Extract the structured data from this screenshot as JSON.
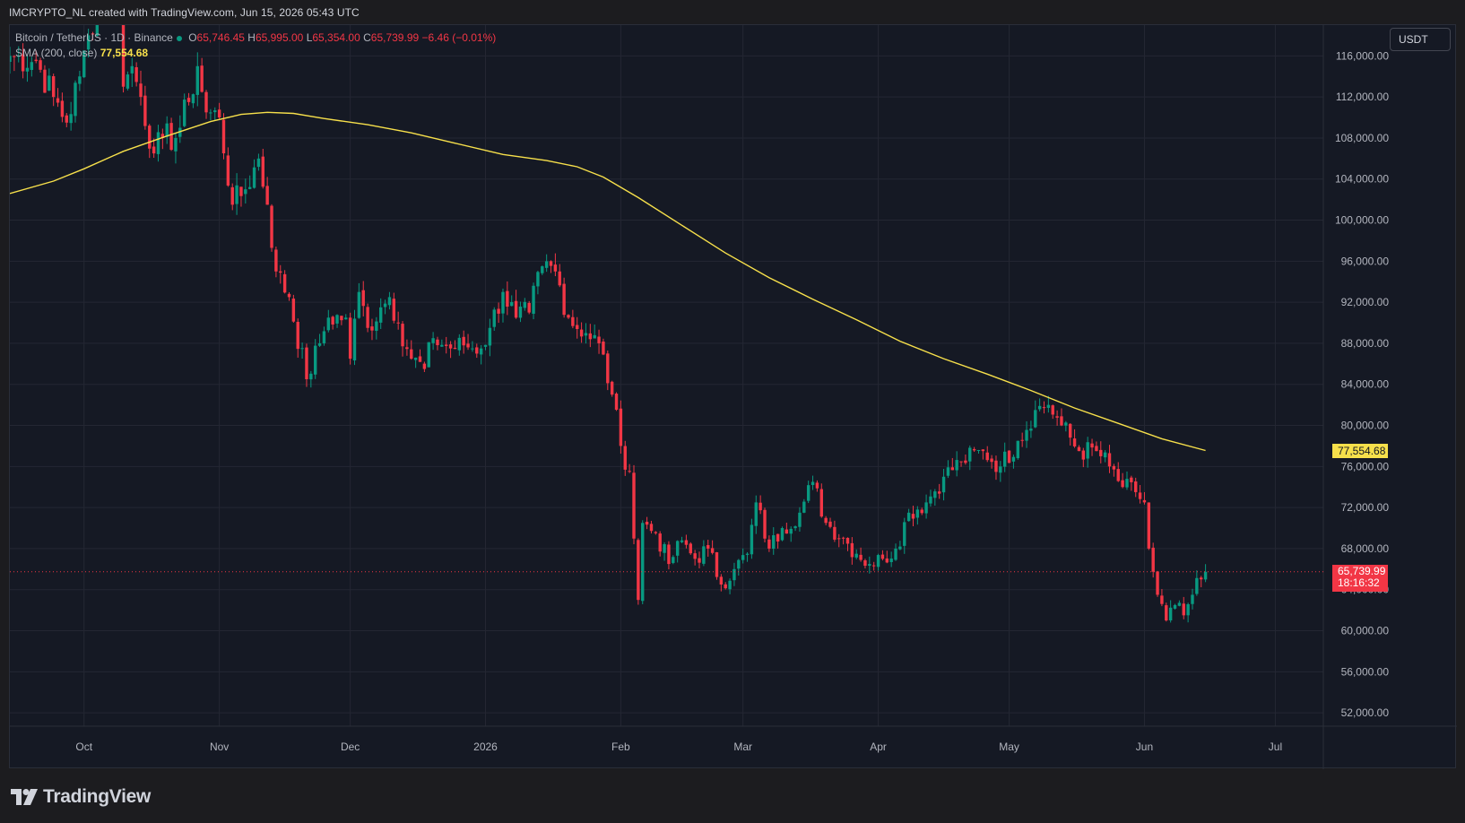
{
  "header": {
    "author_line": "IMCRYPTO_NL created with TradingView.com, Jun 15, 2026 05:43 UTC"
  },
  "legend": {
    "symbol": "Bitcoin / TetherUS · 1D · Binance",
    "open_label": "O",
    "open": "65,746.45",
    "high_label": "H",
    "high": "65,995.00",
    "low_label": "L",
    "low": "65,354.00",
    "close_label": "C",
    "close": "65,739.99",
    "change": "−6.46 (−0.01%)",
    "sma_label": "SMA (200, close)",
    "sma_value": "77,554.68"
  },
  "currency_button": "USDT",
  "price_tags": {
    "sma": "77,554.68",
    "last_price": "65,739.99",
    "countdown": "18:16:32"
  },
  "brand": {
    "name": "TradingView"
  },
  "colors": {
    "background": "#151924",
    "up": "#089981",
    "down": "#f23645",
    "sma": "#f7e04b",
    "grid": "#242733",
    "text": "#d1d4dc"
  },
  "chart_data": {
    "type": "candlestick",
    "symbol": "Bitcoin / TetherUS",
    "interval": "1D",
    "exchange": "Binance",
    "y_axis": {
      "ticks": [
        52000,
        56000,
        60000,
        64000,
        68000,
        72000,
        76000,
        80000,
        84000,
        88000,
        92000,
        96000,
        100000,
        104000,
        108000,
        112000,
        116000
      ],
      "tick_labels": [
        "52,000.00",
        "56,000.00",
        "60,000.00",
        "64,000.00",
        "68,000.00",
        "72,000.00",
        "76,000.00",
        "80,000.00",
        "84,000.00",
        "88,000.00",
        "92,000.00",
        "96,000.00",
        "100,000.00",
        "104,000.00",
        "108,000.00",
        "112,000.00",
        "116,000.00"
      ],
      "range": [
        50700,
        119000
      ],
      "side": "right"
    },
    "x_axis": {
      "tick_labels": [
        "Oct",
        "Nov",
        "Dec",
        "2026",
        "Feb",
        "Mar",
        "Apr",
        "May",
        "Jun",
        "Jul"
      ],
      "tick_dates": [
        "2025-10-01",
        "2025-11-01",
        "2025-12-01",
        "2026-01-01",
        "2026-02-01",
        "2026-03-01",
        "2026-04-01",
        "2026-05-01",
        "2026-06-01",
        "2026-07-01"
      ],
      "range": [
        "2025-09-14",
        "2026-07-12"
      ]
    },
    "price_anchors": [
      [
        "2025-09-14",
        116000
      ],
      [
        "2025-09-20",
        115500
      ],
      [
        "2025-09-24",
        112000
      ],
      [
        "2025-09-27",
        109500
      ],
      [
        "2025-09-30",
        114000
      ],
      [
        "2025-10-02",
        118000
      ],
      [
        "2025-10-06",
        124000
      ],
      [
        "2025-10-09",
        121500
      ],
      [
        "2025-10-10",
        113000
      ],
      [
        "2025-10-12",
        115000
      ],
      [
        "2025-10-14",
        112000
      ],
      [
        "2025-10-17",
        106500
      ],
      [
        "2025-10-19",
        108000
      ],
      [
        "2025-10-22",
        108000
      ],
      [
        "2025-10-25",
        111500
      ],
      [
        "2025-10-27",
        115000
      ],
      [
        "2025-10-29",
        110500
      ],
      [
        "2025-11-01",
        110000
      ],
      [
        "2025-11-04",
        101500
      ],
      [
        "2025-11-07",
        103000
      ],
      [
        "2025-11-10",
        106000
      ],
      [
        "2025-11-12",
        101500
      ],
      [
        "2025-11-14",
        95000
      ],
      [
        "2025-11-17",
        92500
      ],
      [
        "2025-11-21",
        84500
      ],
      [
        "2025-11-24",
        88000
      ],
      [
        "2025-11-26",
        90500
      ],
      [
        "2025-11-30",
        90500
      ],
      [
        "2025-12-01",
        86500
      ],
      [
        "2025-12-03",
        93000
      ],
      [
        "2025-12-05",
        89500
      ],
      [
        "2025-12-08",
        91500
      ],
      [
        "2025-12-10",
        92500
      ],
      [
        "2025-12-12",
        90000
      ],
      [
        "2025-12-15",
        86500
      ],
      [
        "2025-12-18",
        85500
      ],
      [
        "2025-12-20",
        88500
      ],
      [
        "2025-12-24",
        87500
      ],
      [
        "2025-12-27",
        87800
      ],
      [
        "2025-12-31",
        87500
      ],
      [
        "2026-01-02",
        89500
      ],
      [
        "2026-01-05",
        93000
      ],
      [
        "2026-01-08",
        90500
      ],
      [
        "2026-01-11",
        91000
      ],
      [
        "2026-01-14",
        95500
      ],
      [
        "2026-01-17",
        95000
      ],
      [
        "2026-01-20",
        90500
      ],
      [
        "2026-01-24",
        89000
      ],
      [
        "2026-01-27",
        88000
      ],
      [
        "2026-01-30",
        83000
      ],
      [
        "2026-02-01",
        78000
      ],
      [
        "2026-02-03",
        75500
      ],
      [
        "2026-02-05",
        63000
      ],
      [
        "2026-02-06",
        70500
      ],
      [
        "2026-02-09",
        69500
      ],
      [
        "2026-02-12",
        66500
      ],
      [
        "2026-02-15",
        68800
      ],
      [
        "2026-02-18",
        67000
      ],
      [
        "2026-02-21",
        68000
      ],
      [
        "2026-02-24",
        64500
      ],
      [
        "2026-02-27",
        66000
      ],
      [
        "2026-03-02",
        67500
      ],
      [
        "2026-03-04",
        72500
      ],
      [
        "2026-03-07",
        68000
      ],
      [
        "2026-03-10",
        70000
      ],
      [
        "2026-03-14",
        71500
      ],
      [
        "2026-03-17",
        74500
      ],
      [
        "2026-03-20",
        70500
      ],
      [
        "2026-03-24",
        69000
      ],
      [
        "2026-03-27",
        67500
      ],
      [
        "2026-03-30",
        66500
      ],
      [
        "2026-04-02",
        67000
      ],
      [
        "2026-04-05",
        68000
      ],
      [
        "2026-04-08",
        71500
      ],
      [
        "2026-04-12",
        72500
      ],
      [
        "2026-04-16",
        75000
      ],
      [
        "2026-04-20",
        76500
      ],
      [
        "2026-04-25",
        77500
      ],
      [
        "2026-04-29",
        76000
      ],
      [
        "2026-05-03",
        78500
      ],
      [
        "2026-05-07",
        81500
      ],
      [
        "2026-05-10",
        82000
      ],
      [
        "2026-05-13",
        80000
      ],
      [
        "2026-05-17",
        77500
      ],
      [
        "2026-05-21",
        77500
      ],
      [
        "2026-05-24",
        76000
      ],
      [
        "2026-05-27",
        74000
      ],
      [
        "2026-05-30",
        73500
      ],
      [
        "2026-06-01",
        72500
      ],
      [
        "2026-06-02",
        68000
      ],
      [
        "2026-06-04",
        63500
      ],
      [
        "2026-06-06",
        61000
      ],
      [
        "2026-06-08",
        62500
      ],
      [
        "2026-06-10",
        61500
      ],
      [
        "2026-06-12",
        63500
      ],
      [
        "2026-06-14",
        65000
      ],
      [
        "2026-06-15",
        65740
      ]
    ],
    "sma200": {
      "name": "SMA (200, close)",
      "points": [
        [
          "2025-09-14",
          102600
        ],
        [
          "2025-09-24",
          103800
        ],
        [
          "2025-10-01",
          105000
        ],
        [
          "2025-10-10",
          106700
        ],
        [
          "2025-10-20",
          108200
        ],
        [
          "2025-10-30",
          109600
        ],
        [
          "2025-11-06",
          110300
        ],
        [
          "2025-11-12",
          110500
        ],
        [
          "2025-11-18",
          110400
        ],
        [
          "2025-11-25",
          109900
        ],
        [
          "2025-12-05",
          109300
        ],
        [
          "2025-12-15",
          108500
        ],
        [
          "2025-12-25",
          107500
        ],
        [
          "2026-01-05",
          106400
        ],
        [
          "2026-01-15",
          105800
        ],
        [
          "2026-01-22",
          105200
        ],
        [
          "2026-01-28",
          104200
        ],
        [
          "2026-02-05",
          102200
        ],
        [
          "2026-02-15",
          99500
        ],
        [
          "2026-02-25",
          96800
        ],
        [
          "2026-03-07",
          94400
        ],
        [
          "2026-03-17",
          92300
        ],
        [
          "2026-03-27",
          90300
        ],
        [
          "2026-04-06",
          88200
        ],
        [
          "2026-04-16",
          86500
        ],
        [
          "2026-04-26",
          85000
        ],
        [
          "2026-05-06",
          83400
        ],
        [
          "2026-05-16",
          81700
        ],
        [
          "2026-05-26",
          80200
        ],
        [
          "2026-06-05",
          78700
        ],
        [
          "2026-06-15",
          77554.68
        ]
      ]
    },
    "last_price": 65739.99,
    "sma_last": 77554.68
  }
}
